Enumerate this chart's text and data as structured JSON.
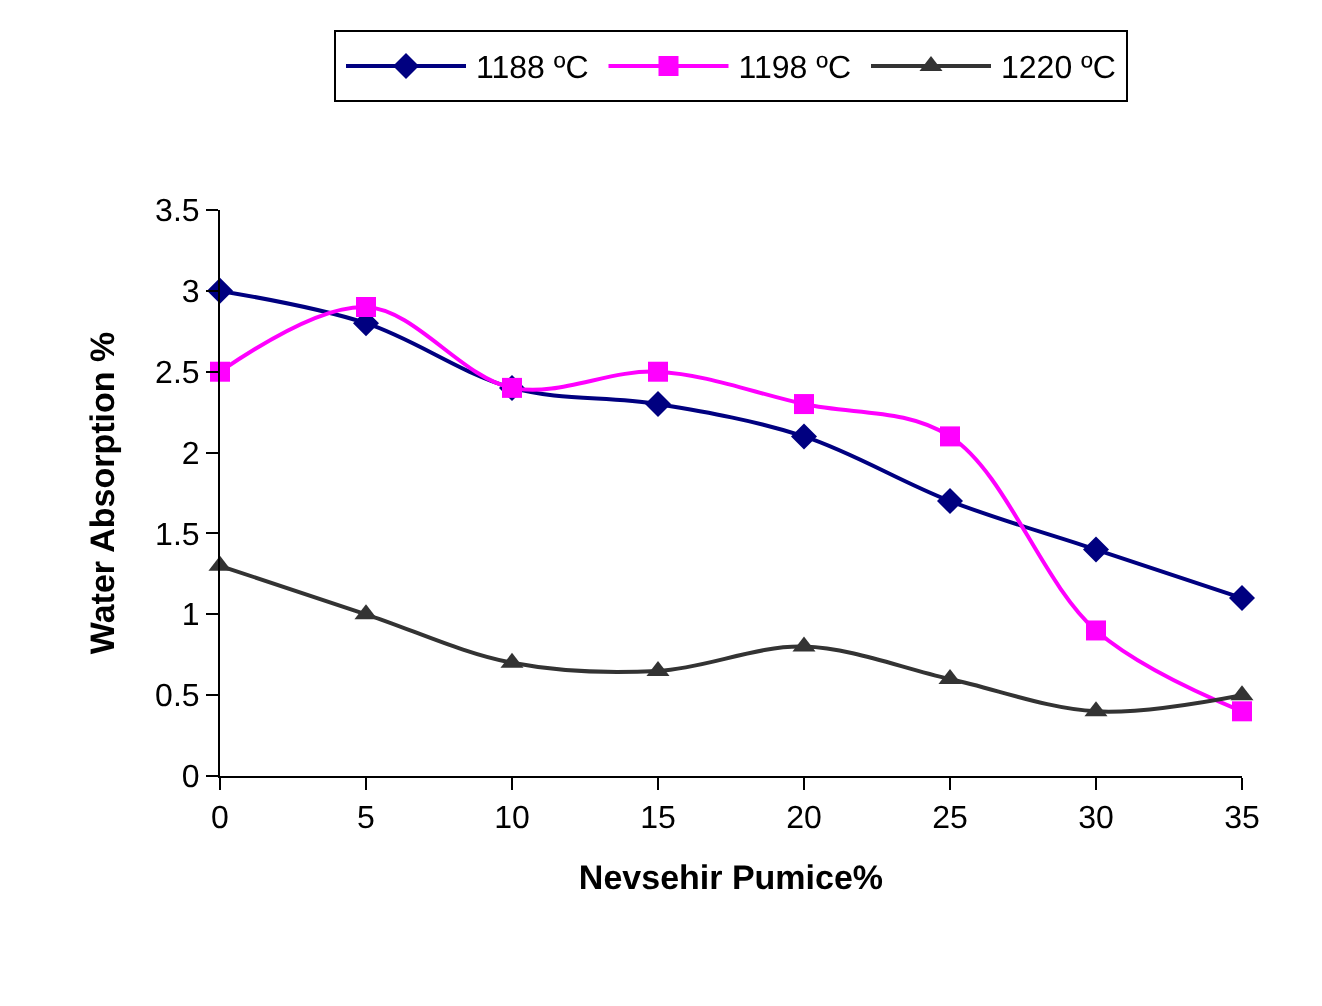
{
  "chart_data": {
    "type": "line",
    "xlabel": "Nevsehir Pumice%",
    "ylabel": "Water Absorption %",
    "x": [
      0,
      5,
      10,
      15,
      20,
      25,
      30,
      35
    ],
    "series": [
      {
        "name": "1188 ºC",
        "color": "#000080",
        "marker": "diamond",
        "values": [
          3.0,
          2.8,
          2.4,
          2.3,
          2.1,
          1.7,
          1.4,
          1.1
        ]
      },
      {
        "name": "1198 ºC",
        "color": "#ff00ff",
        "marker": "square",
        "values": [
          2.5,
          2.9,
          2.4,
          2.5,
          2.3,
          2.1,
          0.9,
          0.4
        ]
      },
      {
        "name": "1220 ºC",
        "color": "#333333",
        "marker": "triangle",
        "values": [
          1.3,
          1.0,
          0.7,
          0.65,
          0.8,
          0.6,
          0.4,
          0.5
        ]
      }
    ],
    "xlim": [
      0,
      35
    ],
    "xticks": [
      0,
      5,
      10,
      15,
      20,
      25,
      30,
      35
    ],
    "ylim": [
      0,
      3.5
    ],
    "yticks": [
      0,
      0.5,
      1,
      1.5,
      2,
      2.5,
      3,
      3.5
    ],
    "grid": false,
    "legend": "top",
    "line_style": "solid"
  }
}
